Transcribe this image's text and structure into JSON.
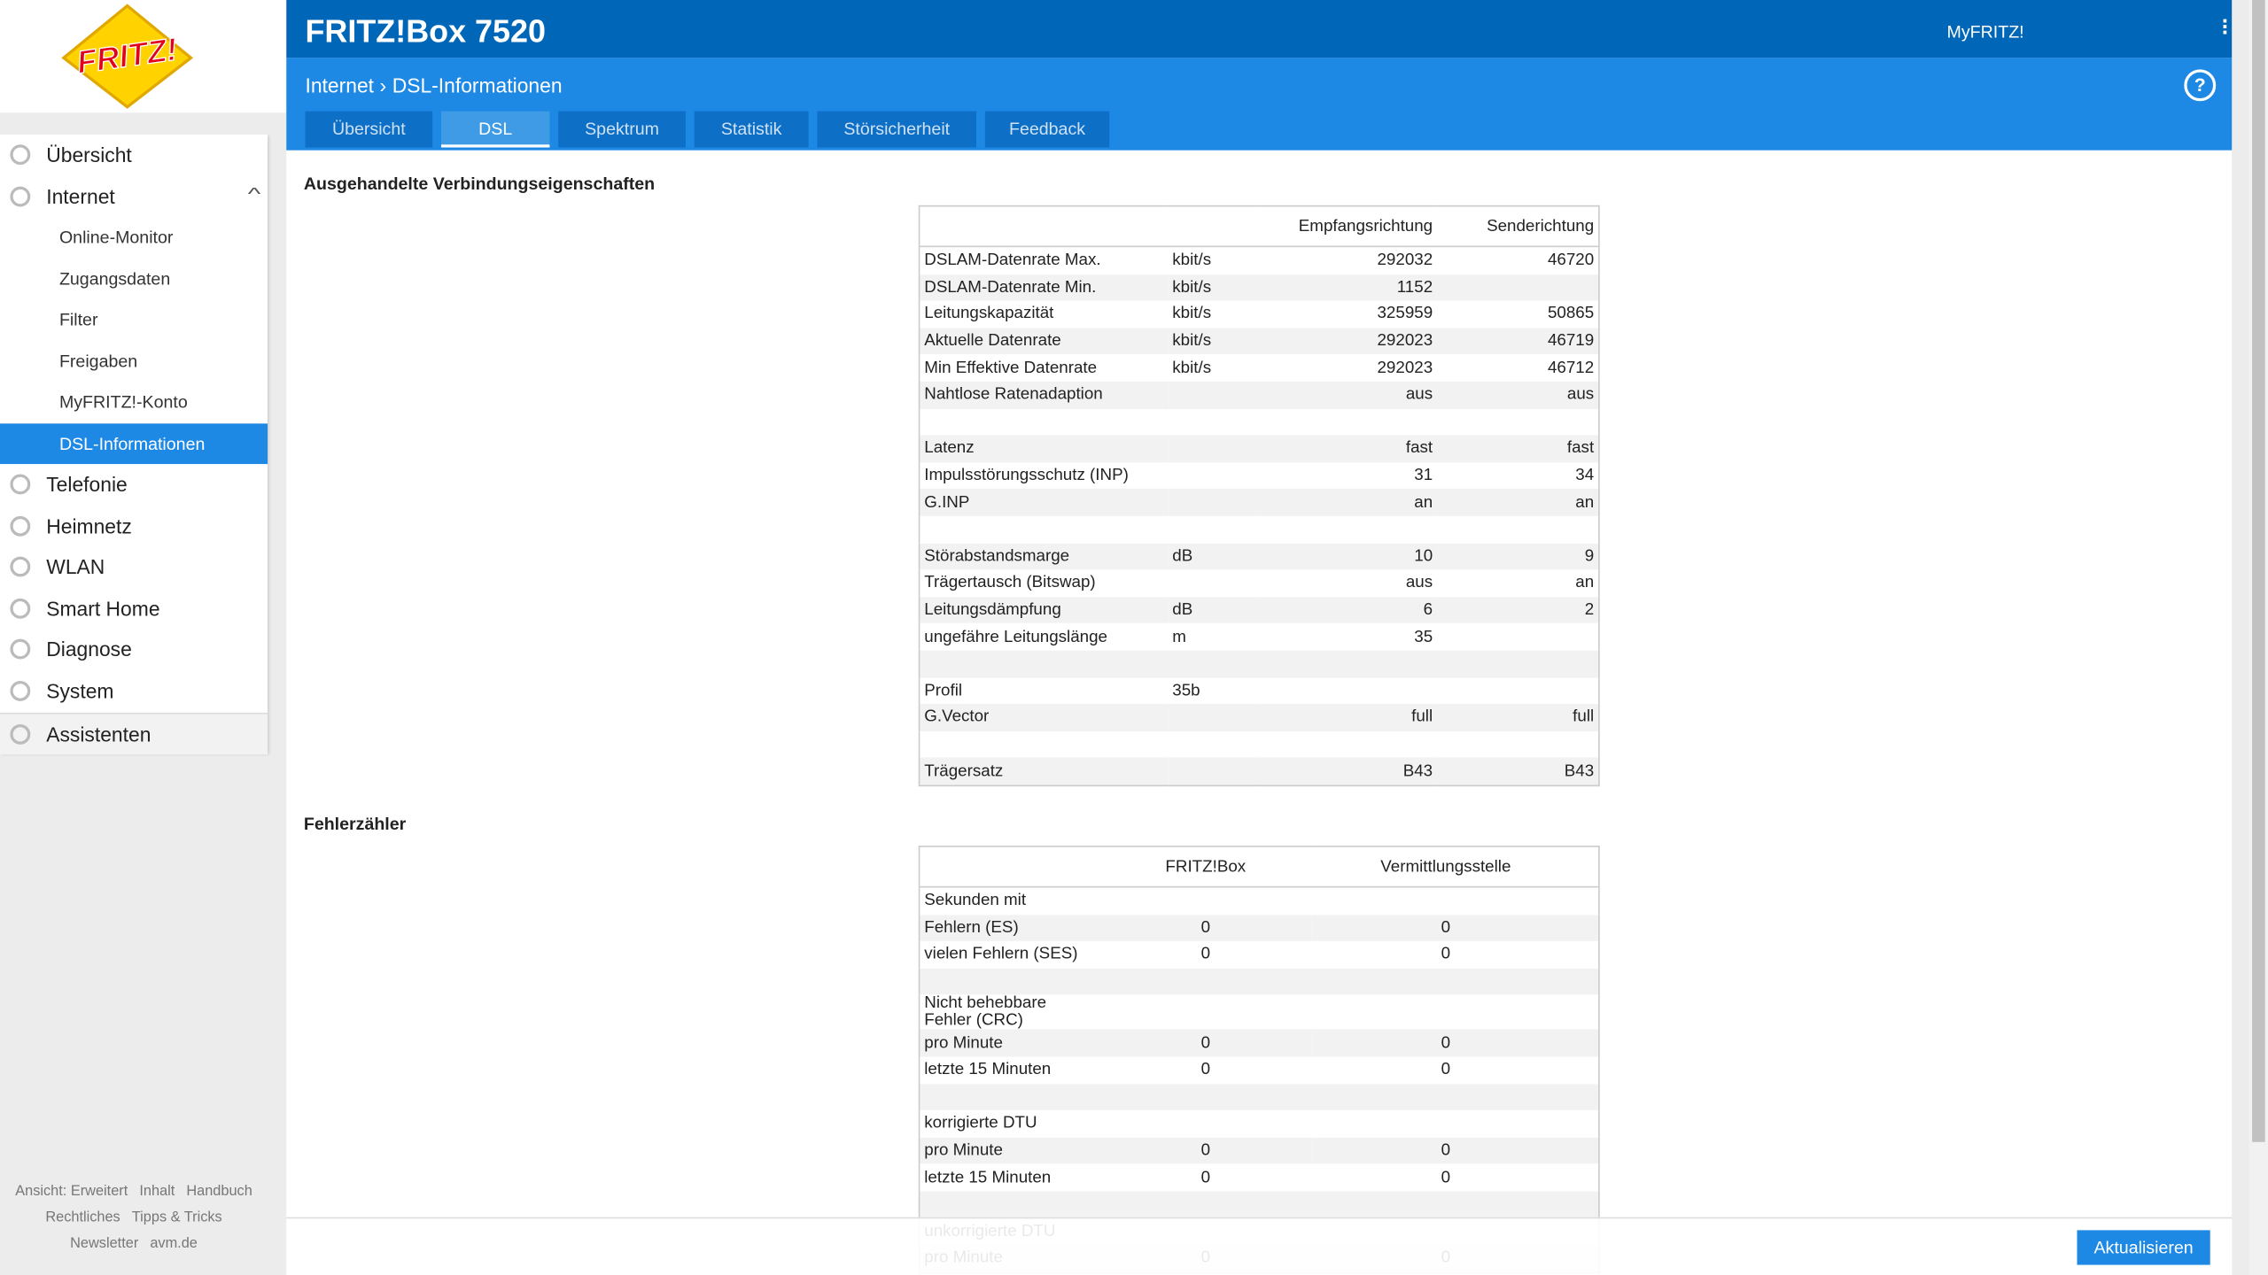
{
  "header": {
    "logo": "FRITZ!",
    "title": "FRITZ!Box 7520",
    "myfritz": "MyFRITZ!",
    "breadcrumb": [
      "Internet",
      "DSL-Informationen"
    ],
    "tabs": [
      "Übersicht",
      "DSL",
      "Spektrum",
      "Statistik",
      "Störsicherheit",
      "Feedback"
    ],
    "active_tab": 1
  },
  "sidebar": {
    "items": [
      {
        "label": "Übersicht"
      },
      {
        "label": "Internet",
        "sub": [
          "Online-Monitor",
          "Zugangsdaten",
          "Filter",
          "Freigaben",
          "MyFRITZ!-Konto",
          "DSL-Informationen"
        ]
      },
      {
        "label": "Telefonie"
      },
      {
        "label": "Heimnetz"
      },
      {
        "label": "WLAN"
      },
      {
        "label": "Smart Home"
      },
      {
        "label": "Diagnose"
      },
      {
        "label": "System"
      }
    ],
    "active_sub": 5,
    "assistant": "Assistenten",
    "footer_links": [
      [
        "Ansicht: Erweitert",
        "Inhalt",
        "Handbuch"
      ],
      [
        "Rechtliches",
        "Tipps & Tricks"
      ],
      [
        "Newsletter",
        "avm.de"
      ]
    ]
  },
  "sections": [
    {
      "title": "Ausgehandelte Verbindungseigenschaften",
      "columns": [
        "Empfangsrichtung",
        "Senderichtung"
      ],
      "groups": [
        [
          {
            "label": "DSLAM-Datenrate Max.",
            "unit": "kbit/s",
            "values": [
              292032,
              46720
            ]
          },
          {
            "label": "DSLAM-Datenrate Min.",
            "unit": "kbit/s",
            "values": [
              1152
            ]
          },
          {
            "label": "Leitungskapazität",
            "unit": "kbit/s",
            "values": [
              325959,
              50865
            ]
          },
          {
            "label": "Aktuelle Datenrate",
            "unit": "kbit/s",
            "values": [
              292023,
              46719
            ]
          },
          {
            "label": "Min Effektive Datenrate",
            "unit": "kbit/s",
            "values": [
              292023,
              46712
            ]
          },
          {
            "label": "Nahtlose Ratenadaption",
            "values": [
              "aus",
              "aus"
            ]
          }
        ],
        [
          {
            "label": "Latenz",
            "values": [
              "fast",
              "fast"
            ]
          },
          {
            "label": "Impulsstörungsschutz (INP)",
            "values": [
              31,
              34
            ]
          },
          {
            "label": "G.INP",
            "values": [
              "an",
              "an"
            ]
          }
        ],
        [
          {
            "label": "Störabstandsmarge",
            "unit": "dB",
            "values": [
              10,
              9
            ]
          },
          {
            "label": "Trägertausch (Bitswap)",
            "values": [
              "aus",
              "an"
            ]
          },
          {
            "label": "Leitungsdämpfung",
            "unit": "dB",
            "values": [
              6,
              2
            ]
          },
          {
            "label": "ungefähre Leitungslänge",
            "unit": "m",
            "values": [
              35
            ]
          }
        ],
        [
          {
            "label": "Profil",
            "unit": "35b"
          },
          {
            "label": "G.Vector",
            "values": [
              "full",
              "full"
            ]
          }
        ],
        [
          {
            "label": "Trägersatz",
            "values": [
              "B43",
              "B43"
            ]
          }
        ]
      ]
    },
    {
      "title": "Fehlerzähler",
      "columns": [
        "FRITZ!Box",
        "Vermittlungsstelle"
      ],
      "groups": [
        [
          {
            "label": "Sekunden mit"
          },
          {
            "label": "Fehlern (ES)",
            "values": [
              0,
              0
            ]
          },
          {
            "label": "vielen Fehlern (SES)",
            "values": [
              0,
              0
            ]
          }
        ],
        [
          {
            "label": "Nicht behebbare Fehler (CRC)"
          },
          {
            "label": "pro Minute",
            "values": [
              0,
              0
            ]
          },
          {
            "label": "letzte 15 Minuten",
            "values": [
              0,
              0
            ]
          }
        ],
        [
          {
            "label": "korrigierte DTU"
          },
          {
            "label": "pro Minute",
            "values": [
              0,
              0
            ]
          },
          {
            "label": "letzte 15 Minuten",
            "values": [
              0,
              0
            ]
          }
        ],
        [
          {
            "label": "unkorrigierte DTU"
          },
          {
            "label": "pro Minute",
            "values": [
              0,
              0
            ]
          }
        ]
      ]
    }
  ],
  "button": "Aktualisieren"
}
